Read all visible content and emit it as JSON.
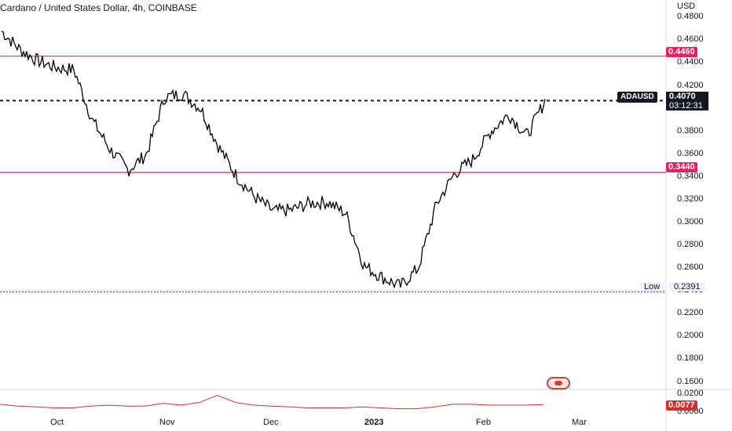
{
  "header": {
    "title": "Cardano / United States Dollar, 4h, COINBASE"
  },
  "price_axis": {
    "currency": "USD",
    "ticks": [
      "0.4800",
      "0.4600",
      "0.4400",
      "0.4200",
      "0.4000",
      "0.3800",
      "0.3600",
      "0.3400",
      "0.3200",
      "0.3000",
      "0.2800",
      "0.2600",
      "0.2400",
      "0.2200",
      "0.2000",
      "0.1800",
      "0.1600"
    ],
    "tick_values": [
      0.48,
      0.46,
      0.44,
      0.42,
      0.4,
      0.38,
      0.36,
      0.34,
      0.32,
      0.3,
      0.28,
      0.26,
      0.24,
      0.22,
      0.2,
      0.18,
      0.16
    ]
  },
  "time_axis": {
    "ticks": [
      "Oct",
      "Nov",
      "Dec",
      "2023",
      "Feb",
      "Mar"
    ]
  },
  "levels": {
    "resistance": {
      "label": "0.4460",
      "value": 0.446,
      "color": "#e91e63"
    },
    "support": {
      "label": "0.3440",
      "value": 0.344,
      "color": "#e91e63"
    },
    "current": {
      "symbol": "ADAUSD",
      "price": "0.4070",
      "value": 0.407,
      "countdown": "03:12:31"
    },
    "low": {
      "label": "Low",
      "price": "0.2391",
      "value": 0.2391
    }
  },
  "indicator": {
    "ticks": [
      "0.0200",
      "0.0000"
    ],
    "current_value": "0.0077",
    "line_color": "#d32f2f"
  },
  "chart_data": {
    "type": "line",
    "title": "Cardano / United States Dollar, 4h, COINBASE",
    "xlabel": "",
    "ylabel": "USD",
    "ylim": [
      0.148,
      0.485
    ],
    "x": [
      "Sep 20",
      "Sep 25",
      "Sep 30",
      "Oct 5",
      "Oct 10",
      "Oct 15",
      "Oct 20",
      "Oct 25",
      "Oct 30",
      "Nov 4",
      "Nov 9",
      "Nov 14",
      "Nov 19",
      "Nov 24",
      "Nov 29",
      "Dec 4",
      "Dec 9",
      "Dec 14",
      "Dec 19",
      "Dec 24",
      "Dec 29",
      "Jan 3",
      "Jan 8",
      "Jan 13",
      "Jan 18",
      "Jan 23",
      "Jan 28",
      "Feb 2",
      "Feb 7",
      "Feb 12",
      "Feb 16"
    ],
    "series": [
      {
        "values": [
          0.468,
          0.452,
          0.442,
          0.436,
          0.434,
          0.39,
          0.364,
          0.346,
          0.36,
          0.41,
          0.413,
          0.4,
          0.366,
          0.34,
          0.322,
          0.31,
          0.311,
          0.317,
          0.318,
          0.308,
          0.262,
          0.252,
          0.244,
          0.26,
          0.316,
          0.343,
          0.355,
          0.38,
          0.395,
          0.376,
          0.407
        ]
      }
    ],
    "indicator_series": [
      0.008,
      0.006,
      0.005,
      0.004,
      0.004,
      0.006,
      0.007,
      0.006,
      0.006,
      0.009,
      0.007,
      0.01,
      0.018,
      0.01,
      0.007,
      0.006,
      0.005,
      0.004,
      0.004,
      0.004,
      0.005,
      0.004,
      0.003,
      0.003,
      0.005,
      0.008,
      0.008,
      0.007,
      0.007,
      0.007,
      0.0077
    ],
    "grid": false
  }
}
